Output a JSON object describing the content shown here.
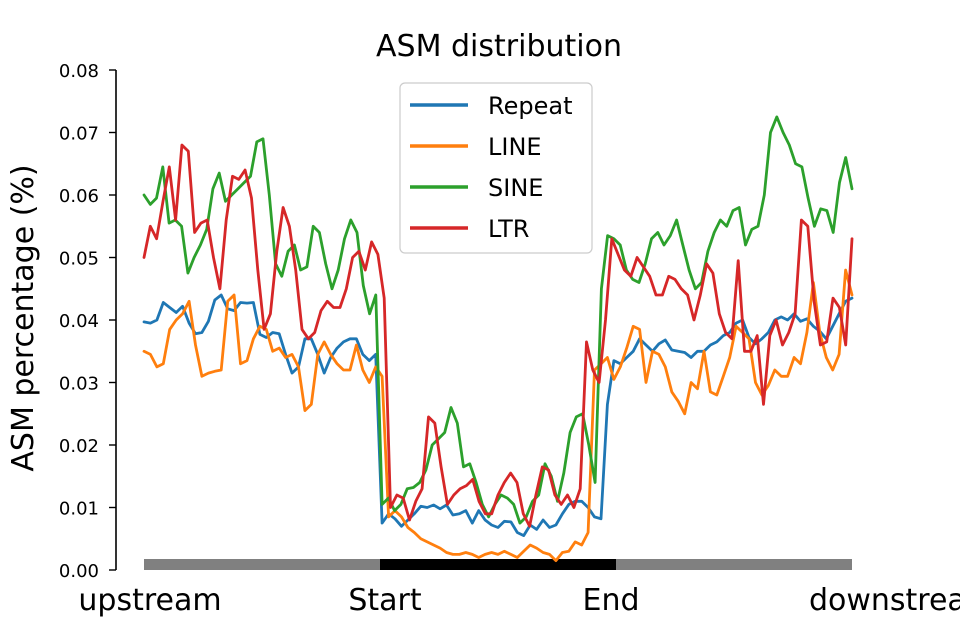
{
  "chart_data": {
    "type": "line",
    "title": "ASM distribution",
    "xlabel": "",
    "ylabel": "ASM percentage (%)",
    "ylim": [
      0,
      0.08
    ],
    "yticks": [
      "0.00",
      "0.01",
      "0.02",
      "0.03",
      "0.04",
      "0.05",
      "0.06",
      "0.07",
      "0.08"
    ],
    "ytick_values": [
      0,
      0.01,
      0.02,
      0.03,
      0.04,
      0.05,
      0.06,
      0.07,
      0.08
    ],
    "xlim": [
      0,
      150
    ],
    "region_labels": [
      "upstream",
      "Start",
      "End",
      "downstream"
    ],
    "legend_position": "top-center",
    "grid": false,
    "region_bar_colors": [
      "#808080",
      "#000000",
      "#808080"
    ],
    "series": [
      {
        "name": "Repeat",
        "color": "#1f77b4",
        "values": [
          0.0397,
          0.0395,
          0.04,
          0.0428,
          0.042,
          0.0412,
          0.0422,
          0.0395,
          0.0378,
          0.038,
          0.0398,
          0.0432,
          0.044,
          0.0418,
          0.0415,
          0.0428,
          0.0427,
          0.0428,
          0.0377,
          0.0372,
          0.038,
          0.0378,
          0.0345,
          0.0315,
          0.0325,
          0.037,
          0.037,
          0.0345,
          0.0315,
          0.034,
          0.0355,
          0.0365,
          0.037,
          0.037,
          0.0345,
          0.0335,
          0.0345,
          0.0075,
          0.009,
          0.0082,
          0.007,
          0.008,
          0.009,
          0.0102,
          0.01,
          0.0104,
          0.0098,
          0.0104,
          0.0088,
          0.009,
          0.0095,
          0.0075,
          0.0095,
          0.008,
          0.0072,
          0.0068,
          0.0078,
          0.0077,
          0.006,
          0.0055,
          0.0072,
          0.0065,
          0.008,
          0.0068,
          0.0072,
          0.009,
          0.0105,
          0.011,
          0.011,
          0.01,
          0.0085,
          0.0082,
          0.0265,
          0.0335,
          0.033,
          0.034,
          0.035,
          0.037,
          0.036,
          0.035,
          0.0362,
          0.0368,
          0.0352,
          0.035,
          0.0348,
          0.034,
          0.035,
          0.035,
          0.036,
          0.0365,
          0.0375,
          0.038,
          0.0395,
          0.04,
          0.0372,
          0.0362,
          0.037,
          0.038,
          0.04,
          0.0405,
          0.04,
          0.041,
          0.0398,
          0.0402,
          0.039,
          0.0382,
          0.037,
          0.039,
          0.041,
          0.043,
          0.0435
        ]
      },
      {
        "name": "LINE",
        "color": "#ff7f0e",
        "values": [
          0.035,
          0.0345,
          0.0325,
          0.033,
          0.0385,
          0.04,
          0.041,
          0.043,
          0.036,
          0.031,
          0.0315,
          0.0318,
          0.032,
          0.043,
          0.044,
          0.033,
          0.0335,
          0.037,
          0.039,
          0.0385,
          0.035,
          0.0355,
          0.034,
          0.0345,
          0.0325,
          0.0255,
          0.0265,
          0.0345,
          0.0365,
          0.0345,
          0.033,
          0.032,
          0.032,
          0.036,
          0.032,
          0.03,
          0.0325,
          0.031,
          0.0085,
          0.0095,
          0.0085,
          0.0068,
          0.006,
          0.005,
          0.0045,
          0.004,
          0.0035,
          0.0028,
          0.0025,
          0.0025,
          0.0028,
          0.0025,
          0.002,
          0.0025,
          0.0028,
          0.0025,
          0.003,
          0.0025,
          0.002,
          0.003,
          0.004,
          0.0035,
          0.0028,
          0.0025,
          0.0015,
          0.0028,
          0.003,
          0.0045,
          0.004,
          0.006,
          0.032,
          0.033,
          0.034,
          0.0305,
          0.0325,
          0.0355,
          0.039,
          0.0385,
          0.03,
          0.035,
          0.0345,
          0.0325,
          0.0285,
          0.027,
          0.025,
          0.03,
          0.029,
          0.035,
          0.0285,
          0.028,
          0.031,
          0.034,
          0.039,
          0.038,
          0.037,
          0.03,
          0.028,
          0.0295,
          0.032,
          0.031,
          0.031,
          0.034,
          0.033,
          0.038,
          0.046,
          0.038,
          0.034,
          0.032,
          0.0345,
          0.048,
          0.044
        ]
      },
      {
        "name": "SINE",
        "color": "#2ca02c",
        "values": [
          0.06,
          0.0585,
          0.0595,
          0.0645,
          0.0555,
          0.056,
          0.055,
          0.0475,
          0.05,
          0.052,
          0.0545,
          0.061,
          0.0635,
          0.059,
          0.06,
          0.061,
          0.062,
          0.063,
          0.0685,
          0.069,
          0.06,
          0.049,
          0.047,
          0.051,
          0.052,
          0.048,
          0.0485,
          0.055,
          0.054,
          0.049,
          0.045,
          0.048,
          0.053,
          0.056,
          0.054,
          0.0455,
          0.041,
          0.044,
          0.0105,
          0.0115,
          0.0095,
          0.0105,
          0.013,
          0.0132,
          0.014,
          0.016,
          0.02,
          0.021,
          0.022,
          0.026,
          0.0235,
          0.0165,
          0.017,
          0.014,
          0.0105,
          0.0085,
          0.0105,
          0.012,
          0.0115,
          0.0105,
          0.0075,
          0.0085,
          0.011,
          0.012,
          0.017,
          0.015,
          0.011,
          0.0155,
          0.022,
          0.0245,
          0.025,
          0.02,
          0.014,
          0.045,
          0.0535,
          0.053,
          0.052,
          0.048,
          0.0465,
          0.046,
          0.049,
          0.053,
          0.054,
          0.052,
          0.0535,
          0.056,
          0.052,
          0.048,
          0.045,
          0.046,
          0.051,
          0.054,
          0.056,
          0.055,
          0.0575,
          0.058,
          0.052,
          0.0545,
          0.055,
          0.06,
          0.07,
          0.0725,
          0.07,
          0.068,
          0.065,
          0.0645,
          0.0595,
          0.055,
          0.0578,
          0.0575,
          0.054,
          0.062,
          0.066,
          0.061
        ]
      },
      {
        "name": "LTR",
        "color": "#d62728",
        "values": [
          0.05,
          0.055,
          0.053,
          0.059,
          0.0645,
          0.056,
          0.068,
          0.067,
          0.054,
          0.0555,
          0.056,
          0.05,
          0.045,
          0.056,
          0.063,
          0.0625,
          0.064,
          0.0595,
          0.048,
          0.0385,
          0.041,
          0.051,
          0.058,
          0.055,
          0.048,
          0.0385,
          0.037,
          0.038,
          0.0415,
          0.043,
          0.042,
          0.042,
          0.045,
          0.05,
          0.051,
          0.048,
          0.0525,
          0.0505,
          0.0435,
          0.01,
          0.012,
          0.0115,
          0.008,
          0.011,
          0.013,
          0.0245,
          0.0235,
          0.0165,
          0.0105,
          0.012,
          0.013,
          0.0135,
          0.0145,
          0.011,
          0.009,
          0.009,
          0.012,
          0.014,
          0.0155,
          0.014,
          0.009,
          0.007,
          0.012,
          0.0165,
          0.016,
          0.012,
          0.0105,
          0.012,
          0.01,
          0.013,
          0.0365,
          0.032,
          0.03,
          0.04,
          0.053,
          0.0505,
          0.048,
          0.047,
          0.05,
          0.0485,
          0.047,
          0.044,
          0.044,
          0.047,
          0.0465,
          0.045,
          0.044,
          0.04,
          0.044,
          0.049,
          0.0475,
          0.041,
          0.038,
          0.037,
          0.0495,
          0.035,
          0.035,
          0.0375,
          0.0265,
          0.0375,
          0.04,
          0.036,
          0.038,
          0.041,
          0.056,
          0.055,
          0.043,
          0.036,
          0.0365,
          0.0435,
          0.042,
          0.036,
          0.053
        ]
      }
    ]
  }
}
